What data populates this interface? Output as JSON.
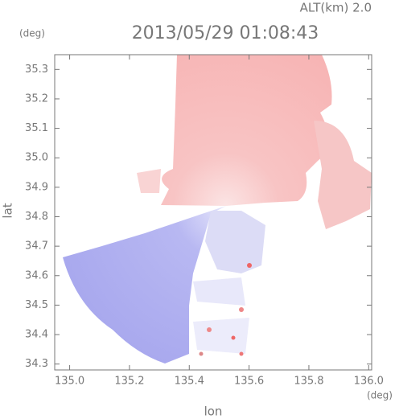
{
  "chart_data": {
    "type": "image",
    "title": "2013/05/29 01:08:43",
    "subtitle": "ALT(km) 2.0",
    "y_label": "lat",
    "y_unit": "(deg)",
    "x_label": "lon",
    "x_unit": "(deg)",
    "xlim": [
      134.95,
      136.01
    ],
    "xticks": [
      {
        "value": 135,
        "label": "135.0"
      },
      135.2,
      135.4,
      135.6,
      135.8,
      {
        "value": 136,
        "label": "136.0"
      }
    ],
    "ylim": [
      34.28,
      35.35
    ],
    "yticks": [
      34.3,
      34.4,
      34.5,
      34.6,
      34.7,
      34.8,
      34.9,
      {
        "value": 35,
        "label": "35.0"
      },
      35.1,
      35.2,
      35.3
    ]
  }
}
